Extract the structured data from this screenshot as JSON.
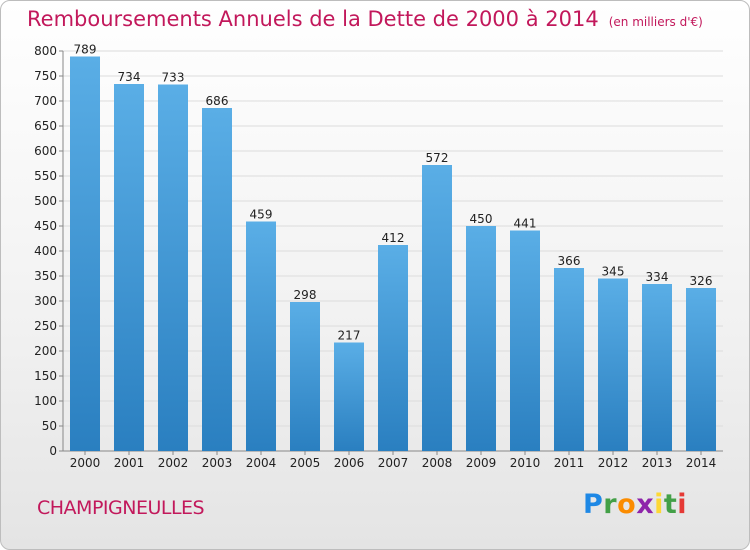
{
  "header": {
    "title": "Remboursements Annuels de la Dette de 2000 à 2014",
    "unit": "(en milliers d'€)"
  },
  "footer": {
    "commune": "CHAMPIGNEULLES",
    "logo_letters": [
      "P",
      "r",
      "o",
      "x",
      "i",
      "t",
      "i"
    ]
  },
  "chart_data": {
    "type": "bar",
    "title": "Remboursements Annuels de la Dette de 2000 à 2014",
    "xlabel": "",
    "ylabel": "",
    "categories": [
      "2000",
      "2001",
      "2002",
      "2003",
      "2004",
      "2005",
      "2006",
      "2007",
      "2008",
      "2009",
      "2010",
      "2011",
      "2012",
      "2013",
      "2014"
    ],
    "values": [
      789,
      734,
      733,
      686,
      459,
      298,
      217,
      412,
      572,
      450,
      441,
      366,
      345,
      334,
      326
    ],
    "ylim": [
      0,
      800
    ],
    "yticks": [
      0,
      50,
      100,
      150,
      200,
      250,
      300,
      350,
      400,
      450,
      500,
      550,
      600,
      650,
      700,
      750,
      800
    ],
    "grid": true,
    "bar_color_top": "#5aaee6",
    "bar_color_bottom": "#2a7fc0"
  }
}
